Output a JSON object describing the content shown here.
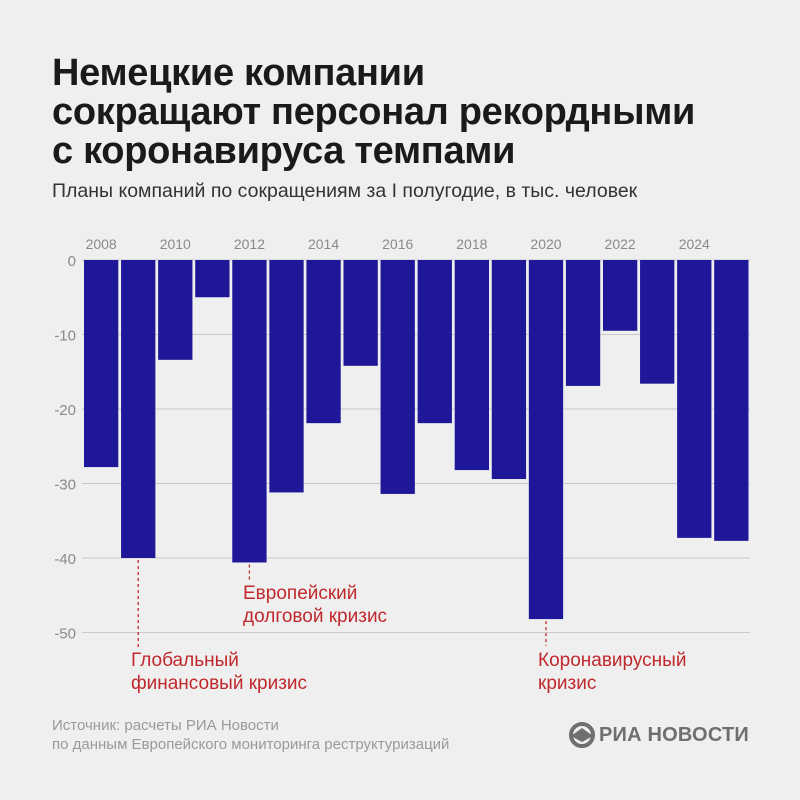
{
  "header": {
    "title_lines": [
      "Немецкие компании",
      "сокращают персонал рекордными",
      "с коронавируса темпами"
    ],
    "subtitle": "Планы компаний по сокращениям за I полугодие, в тыс. человек"
  },
  "chart_data": {
    "type": "bar",
    "categories": [
      "2008",
      "2009",
      "2010",
      "2011",
      "2012",
      "2013",
      "2014",
      "2015",
      "2016",
      "2017",
      "2018",
      "2019",
      "2020",
      "2021",
      "2022",
      "2023",
      "2024",
      "2025"
    ],
    "x_tick_labels": [
      "2008",
      "2010",
      "2012",
      "2014",
      "2016",
      "2018",
      "2020",
      "2022",
      "2024"
    ],
    "values": [
      -27.8,
      -40.0,
      -13.4,
      -5.0,
      -40.6,
      -31.2,
      -21.9,
      -14.2,
      -31.4,
      -21.9,
      -28.2,
      -29.4,
      -48.2,
      -16.9,
      -9.5,
      -16.6,
      -37.3,
      -37.7
    ],
    "y_ticks": [
      0,
      -10,
      -20,
      -30,
      -40,
      -50
    ],
    "ylim": [
      -53,
      0
    ],
    "grid": true,
    "bar_color": "#1e1899",
    "annotations": [
      {
        "category": "2009",
        "lines": [
          "Глобальный",
          "финансовый кризис"
        ]
      },
      {
        "category": "2012",
        "lines": [
          "Европейский",
          "долговой кризис"
        ]
      },
      {
        "category": "2020",
        "lines": [
          "Коронавирусный",
          "кризис"
        ]
      }
    ],
    "annotation_color": "#c0282d"
  },
  "footer": {
    "source_lines": [
      "Источник: расчеты РИА Новости",
      "по данным Европейского мониторинга реструктуризаций"
    ]
  },
  "brand": {
    "logo_icon": "ria-logo-icon",
    "name": "РИА НОВОСТИ"
  }
}
